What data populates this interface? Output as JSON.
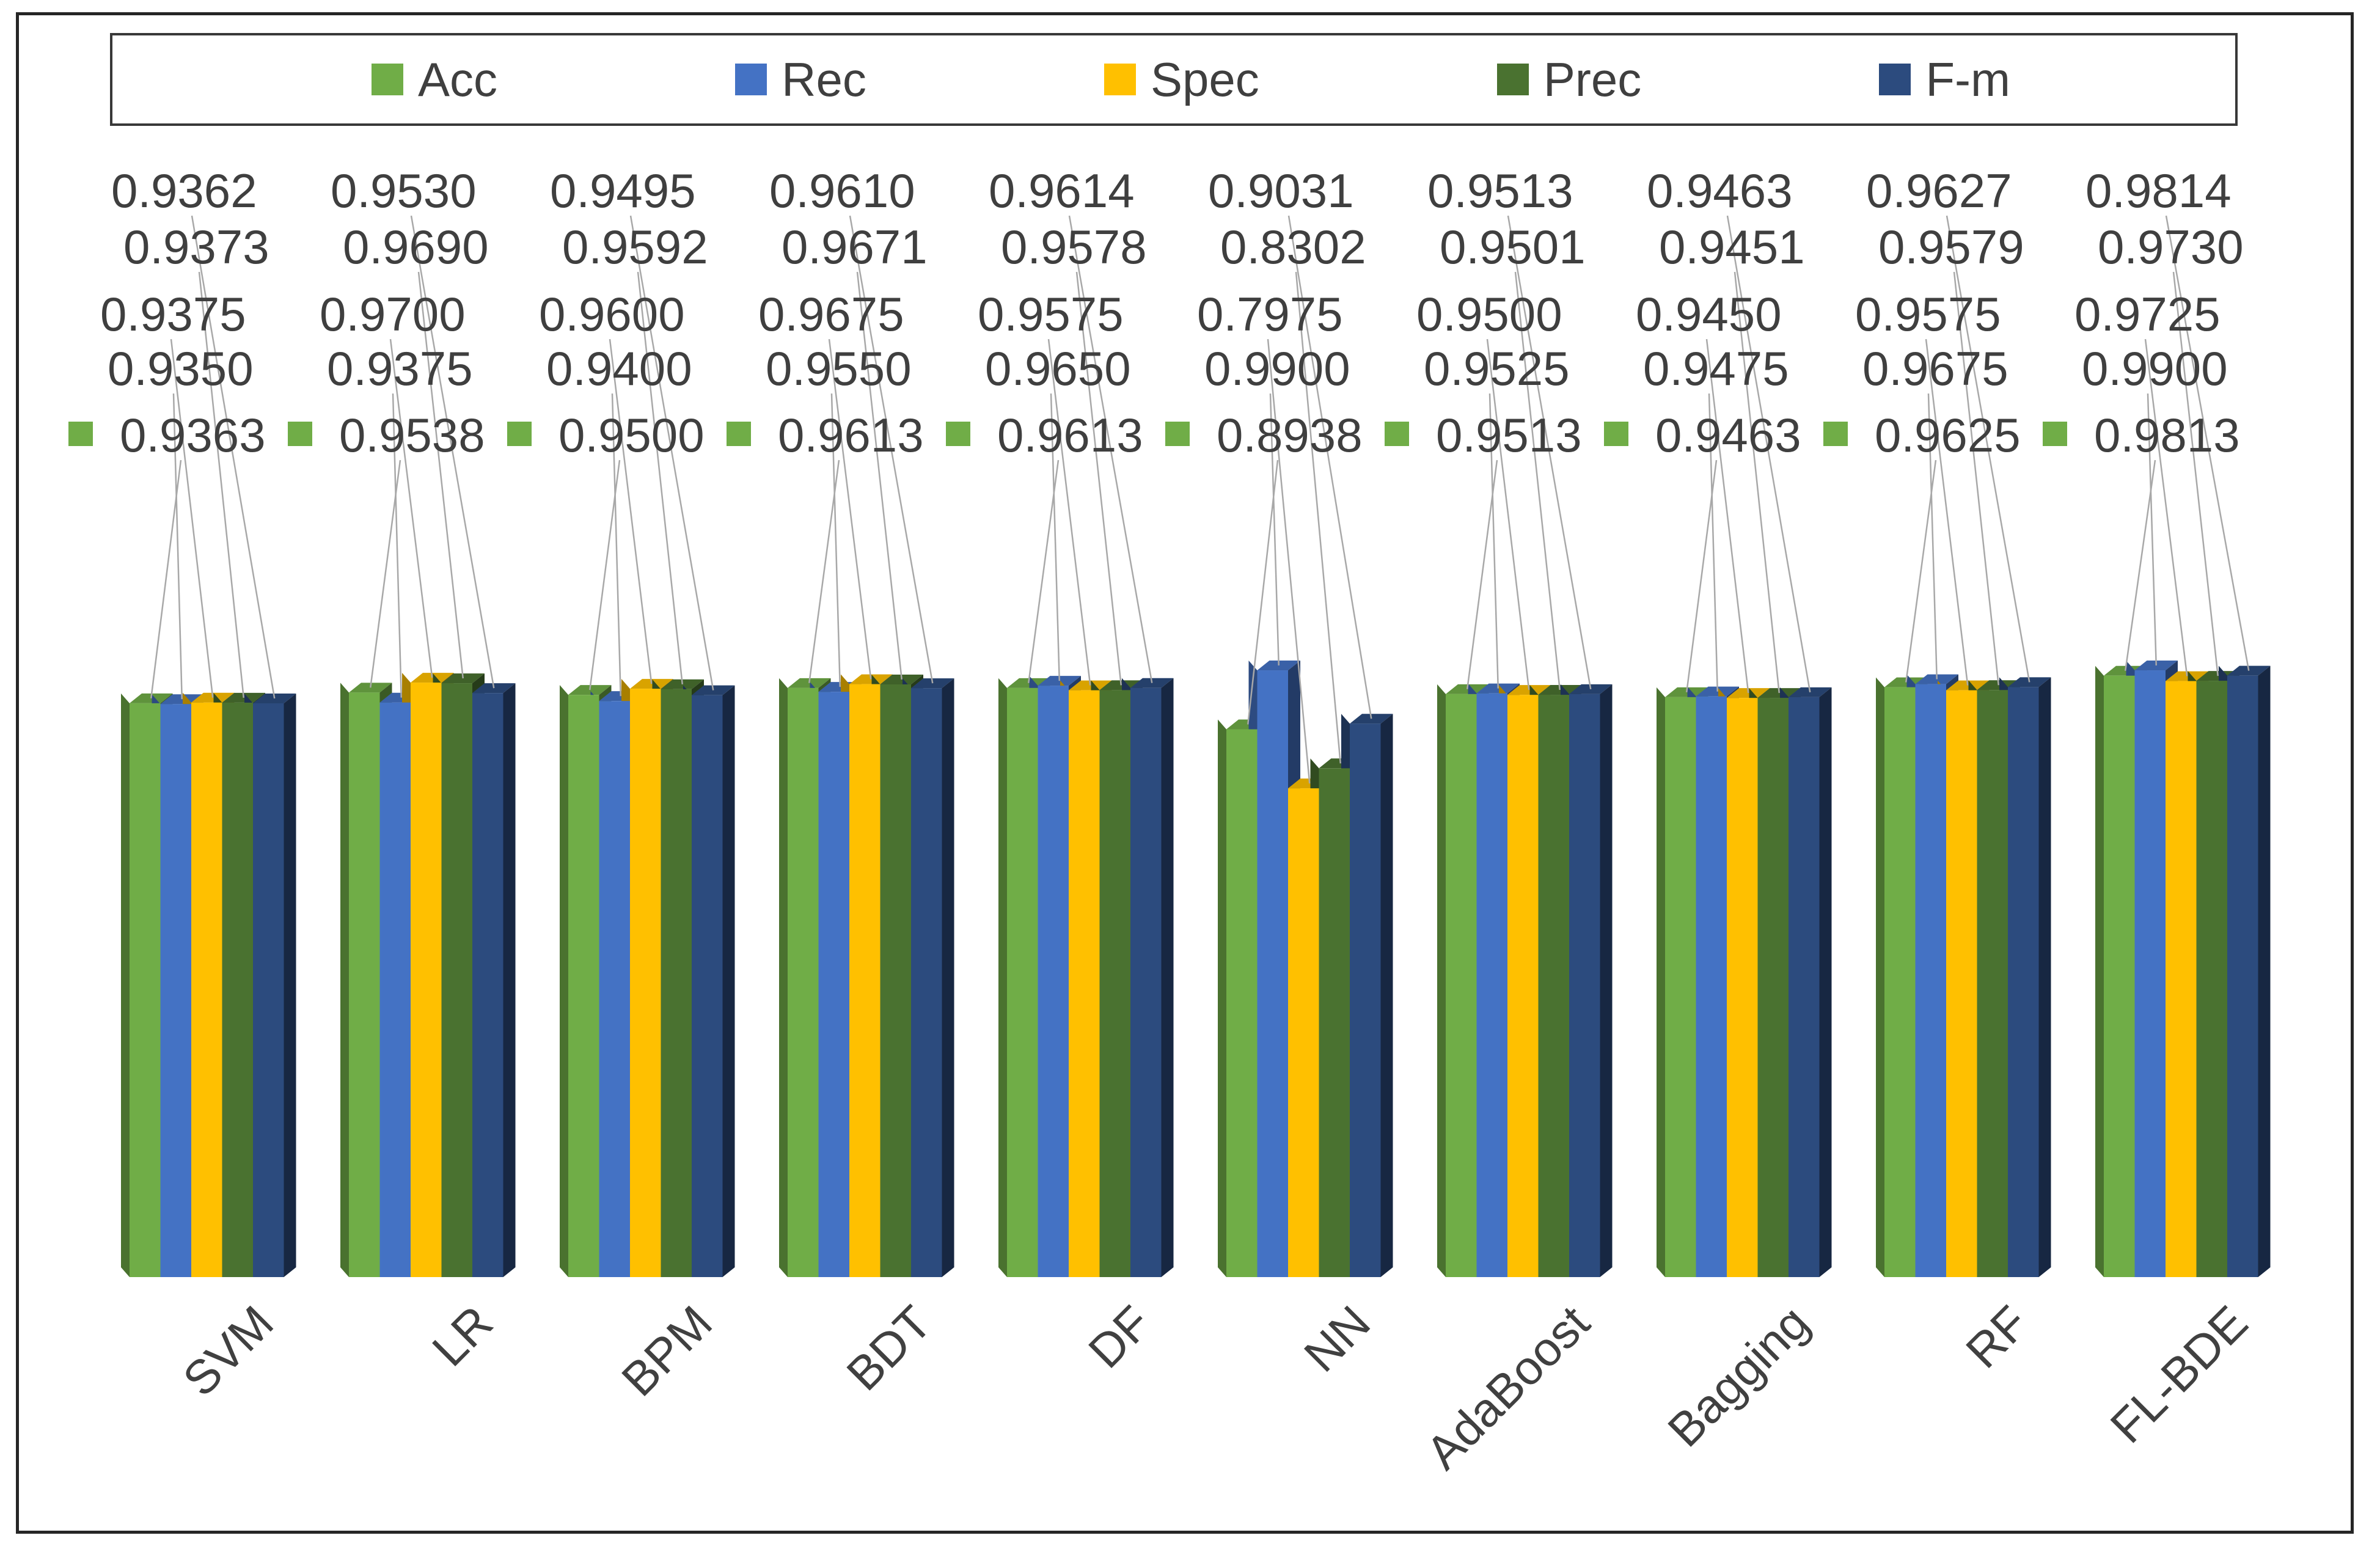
{
  "legend": {
    "items": [
      {
        "label": "Acc",
        "color": "#70AD47"
      },
      {
        "label": "Rec",
        "color": "#4472C4"
      },
      {
        "label": "Spec",
        "color": "#FFC000"
      },
      {
        "label": "Prec",
        "color": "#4A7230"
      },
      {
        "label": "F-m",
        "color": "#2C4B7E"
      }
    ]
  },
  "chart_data": {
    "type": "bar",
    "subtype": "3d-clustered-column",
    "categories": [
      "SVM",
      "LR",
      "BPM",
      "BDT",
      "DF",
      "NN",
      "AdaBoost",
      "Bagging",
      "RF",
      "FL-BDE"
    ],
    "series": [
      {
        "name": "Acc",
        "color": "#70AD47",
        "values": [
          0.9363,
          0.9538,
          0.95,
          0.9613,
          0.9613,
          0.8938,
          0.9513,
          0.9463,
          0.9625,
          0.9813
        ]
      },
      {
        "name": "Rec",
        "color": "#4472C4",
        "values": [
          0.935,
          0.9375,
          0.94,
          0.955,
          0.965,
          0.99,
          0.9525,
          0.9475,
          0.9675,
          0.99
        ]
      },
      {
        "name": "Spec",
        "color": "#FFC000",
        "values": [
          0.9375,
          0.97,
          0.96,
          0.9675,
          0.9575,
          0.7975,
          0.95,
          0.945,
          0.9575,
          0.9725
        ]
      },
      {
        "name": "Prec",
        "color": "#4A7230",
        "values": [
          0.9373,
          0.969,
          0.9592,
          0.9671,
          0.9578,
          0.8302,
          0.9501,
          0.9451,
          0.9579,
          0.973
        ]
      },
      {
        "name": "F-m",
        "color": "#2C4B7E",
        "values": [
          0.9362,
          0.953,
          0.9495,
          0.961,
          0.9614,
          0.9031,
          0.9513,
          0.9463,
          0.9627,
          0.9814
        ]
      }
    ],
    "value_format": "0.0000",
    "data_label_rows_top_to_bottom": [
      "F-m",
      "Prec",
      "Spec",
      "Rec",
      "Acc"
    ],
    "acc_labels_show_legend_key": true,
    "xlabel": "",
    "ylabel": "",
    "ylim": [
      0,
      1
    ],
    "grid": false,
    "axes_visible": false,
    "legend_position": "top"
  },
  "style": {
    "background": "#FFFFFF",
    "label_color": "#3F3F3F",
    "category_label_color": "#404040",
    "leader_line_color": "#A8A8A8",
    "figure_border_color": "#262626",
    "legend_border_color": "#383838"
  }
}
